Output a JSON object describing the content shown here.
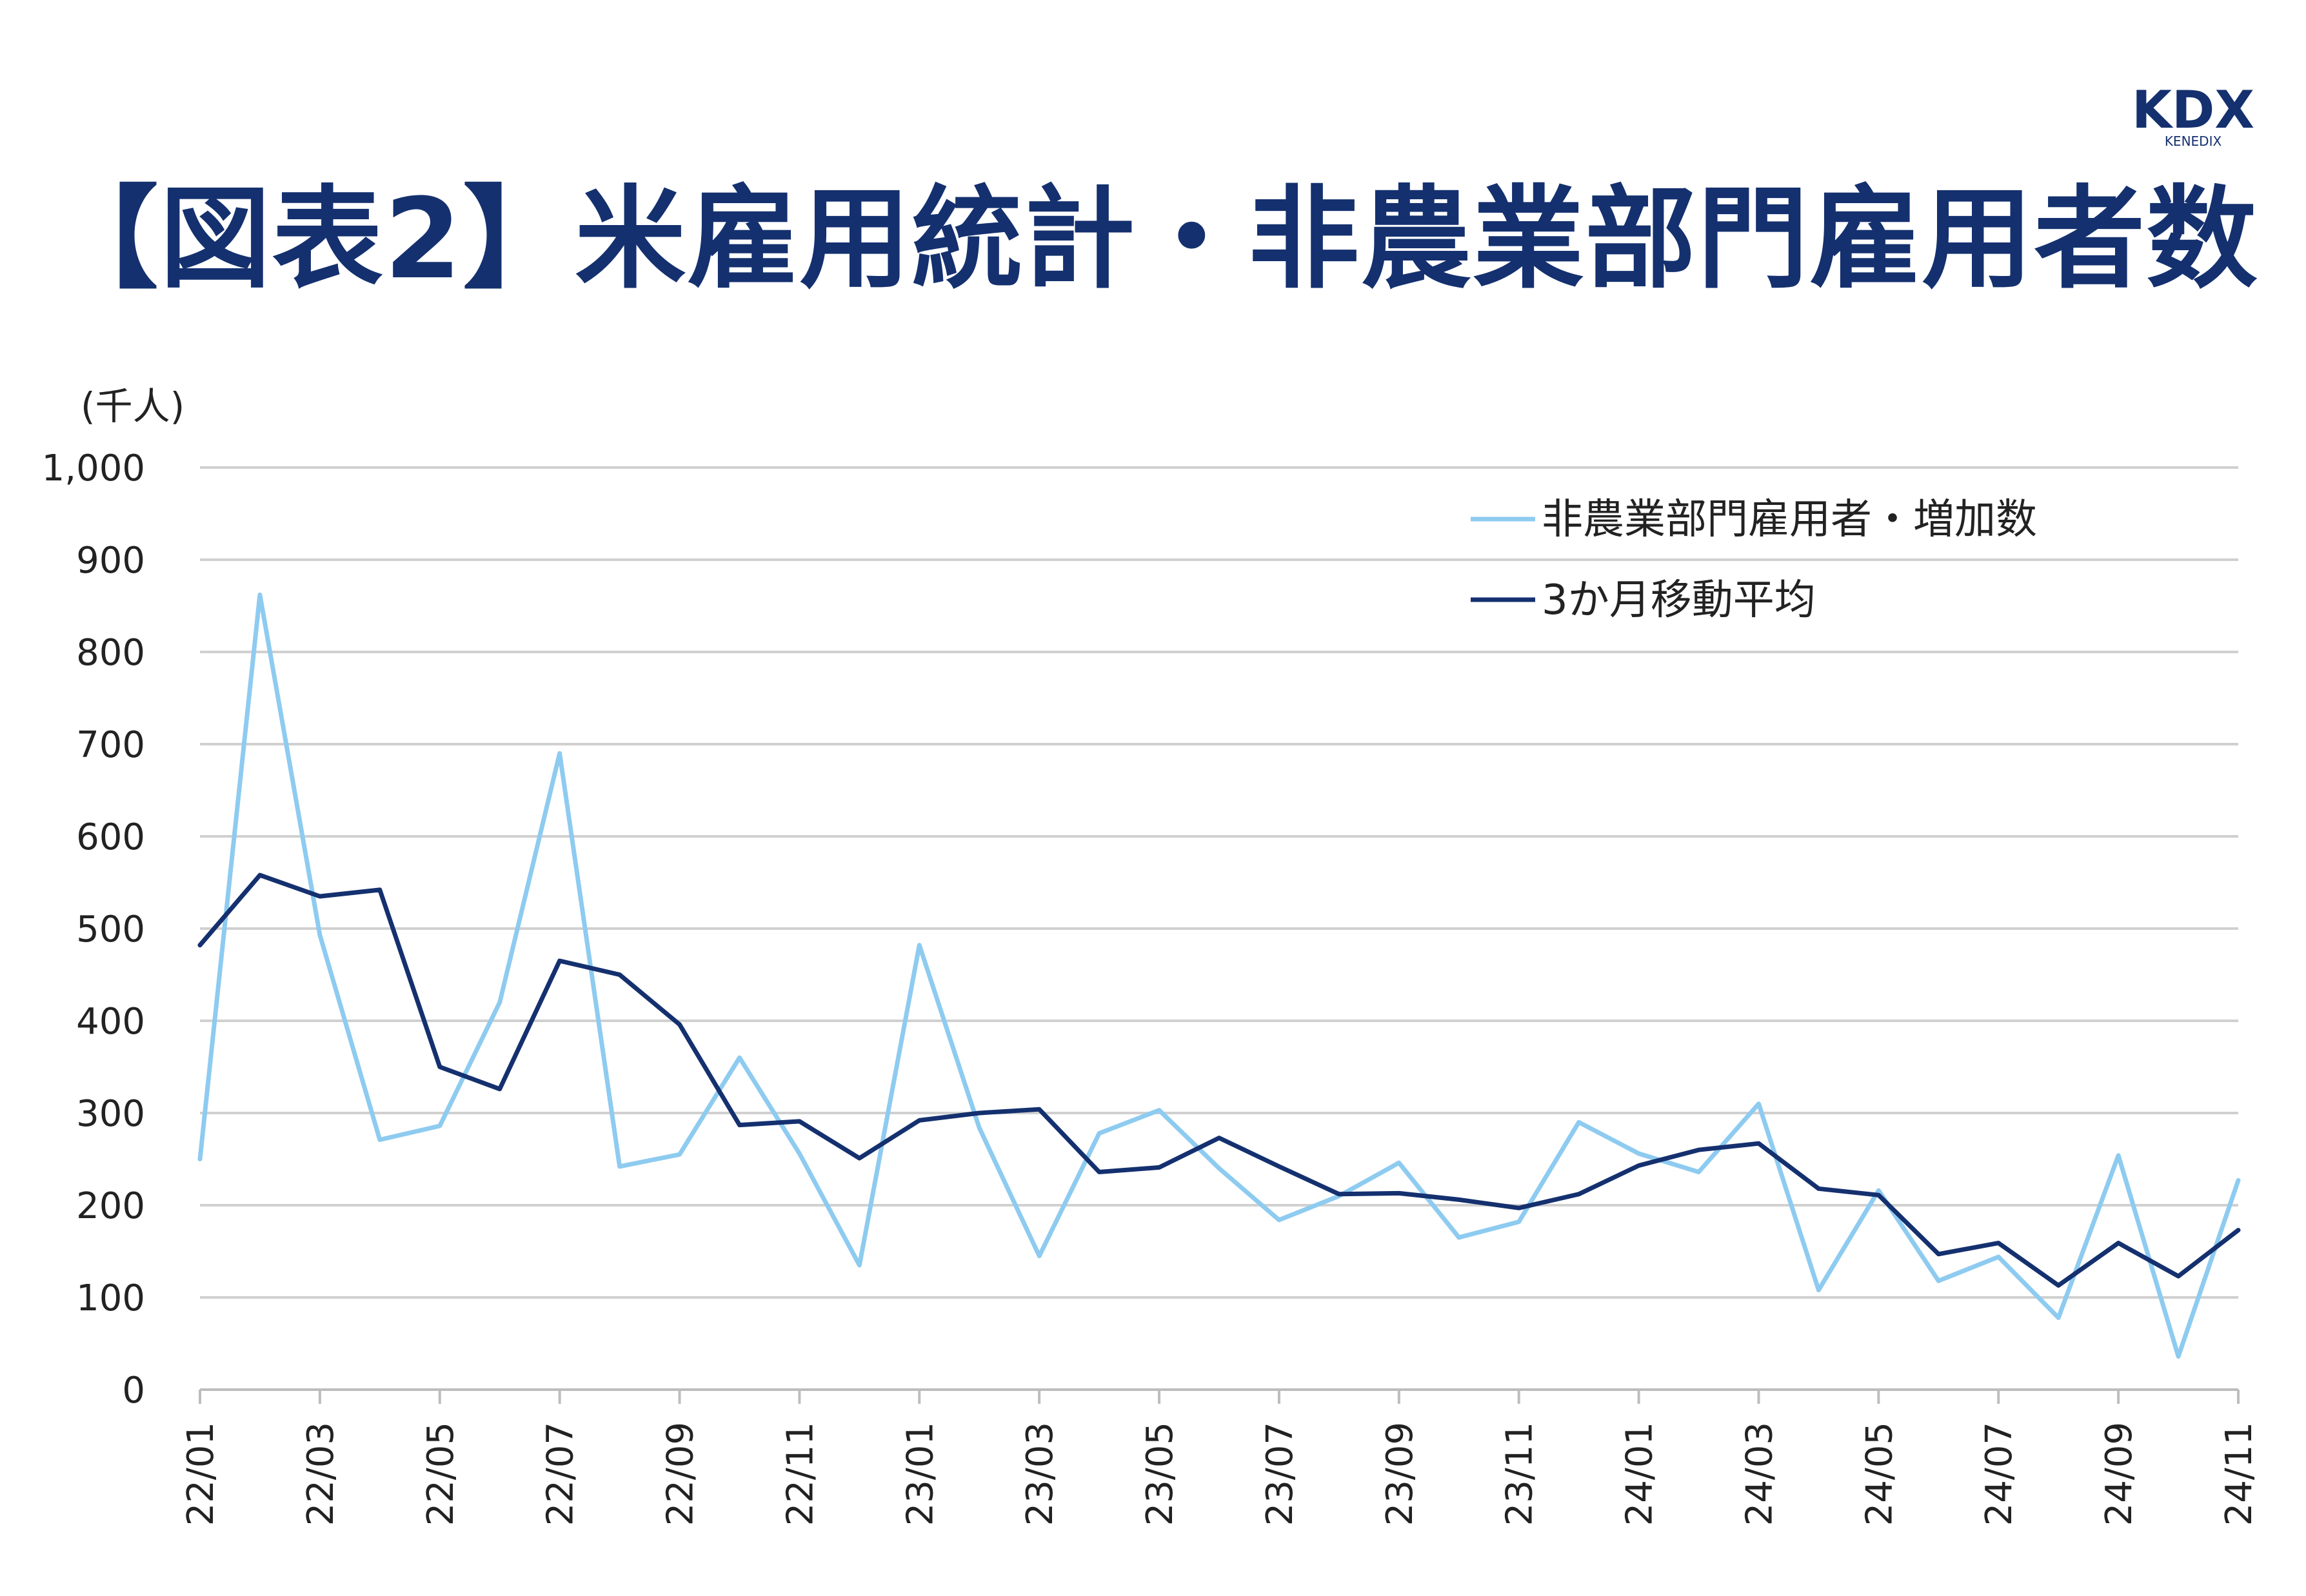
{
  "title": "【図表2】米雇用統計・非農業部門雇用者数",
  "logo": {
    "text": "KDX",
    "subtext": "KENEDIX",
    "color": "#14306f"
  },
  "chart_data": {
    "type": "line",
    "ylabel": "(千人)",
    "ylim": [
      0,
      1000
    ],
    "yticks": [
      0,
      100,
      200,
      300,
      400,
      500,
      600,
      700,
      800,
      900,
      1000
    ],
    "ytick_labels": [
      "0",
      "100",
      "200",
      "300",
      "400",
      "500",
      "600",
      "700",
      "800",
      "900",
      "1,000"
    ],
    "grid": true,
    "legend_position": "top-right",
    "x": [
      "22/01",
      "22/02",
      "22/03",
      "22/04",
      "22/05",
      "22/06",
      "22/07",
      "22/08",
      "22/09",
      "22/10",
      "22/11",
      "22/12",
      "23/01",
      "23/02",
      "23/03",
      "23/04",
      "23/05",
      "23/06",
      "23/07",
      "23/08",
      "23/09",
      "23/10",
      "23/11",
      "23/12",
      "24/01",
      "24/02",
      "24/03",
      "24/04",
      "24/05",
      "24/06",
      "24/07",
      "24/08",
      "24/09",
      "24/10",
      "24/11"
    ],
    "xtick_labels": [
      "22/01",
      "22/03",
      "22/05",
      "22/07",
      "22/09",
      "22/11",
      "23/01",
      "23/03",
      "23/05",
      "23/07",
      "23/09",
      "23/11",
      "24/01",
      "24/03",
      "24/05",
      "24/07",
      "24/09",
      "24/11"
    ],
    "series": [
      {
        "name": "非農業部門雇用者・増加数",
        "color": "#8ecbf0",
        "values": [
          250,
          862,
          493,
          271,
          286,
          420,
          690,
          242,
          255,
          360,
          256,
          135,
          482,
          284,
          145,
          278,
          303,
          240,
          184,
          210,
          246,
          165,
          182,
          290,
          256,
          236,
          310,
          108,
          216,
          118,
          144,
          78,
          254,
          36,
          227
        ]
      },
      {
        "name": "3か月移動平均",
        "color": "#14306f",
        "values": [
          482,
          558,
          535,
          542,
          350,
          326,
          465,
          450,
          396,
          287,
          291,
          251,
          292,
          300,
          304,
          236,
          241,
          273,
          242,
          212,
          213,
          206,
          197,
          212,
          243,
          260,
          267,
          218,
          211,
          147,
          159,
          113,
          159,
          123,
          173
        ]
      }
    ]
  }
}
